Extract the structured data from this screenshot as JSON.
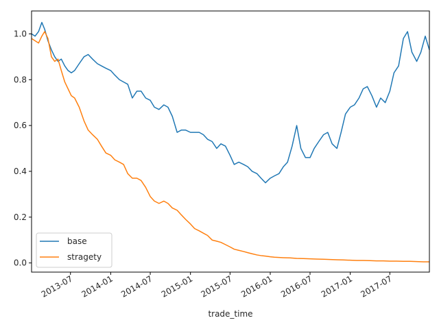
{
  "chart_data": {
    "type": "line",
    "title": "",
    "xlabel": "trade_time",
    "ylabel": "",
    "x_range": [
      "2013-01-04",
      "2017-12-29"
    ],
    "ylim": [
      -0.04,
      1.1
    ],
    "x_ticks": [
      "2013-07",
      "2014-01",
      "2014-07",
      "2015-01",
      "2015-07",
      "2016-01",
      "2016-07",
      "2017-01",
      "2017-07"
    ],
    "y_ticks": [
      0.0,
      0.2,
      0.4,
      0.6,
      0.8,
      1.0
    ],
    "y_tick_labels": [
      "0.0",
      "0.2",
      "0.4",
      "0.6",
      "0.8",
      "1.0"
    ],
    "grid": false,
    "legend": {
      "position": "lower-left",
      "entries": [
        "base",
        "stragety"
      ]
    },
    "series": [
      {
        "name": "base",
        "color": "#1f77b4",
        "x": [
          "2013-01-04",
          "2013-01-20",
          "2013-02-05",
          "2013-02-20",
          "2013-03-05",
          "2013-03-20",
          "2013-04-05",
          "2013-04-20",
          "2013-05-05",
          "2013-05-20",
          "2013-06-05",
          "2013-06-20",
          "2013-07-05",
          "2013-07-20",
          "2013-08-10",
          "2013-09-01",
          "2013-09-20",
          "2013-10-10",
          "2013-11-01",
          "2013-11-20",
          "2013-12-10",
          "2014-01-01",
          "2014-01-20",
          "2014-02-10",
          "2014-03-01",
          "2014-03-20",
          "2014-04-10",
          "2014-05-01",
          "2014-05-20",
          "2014-06-10",
          "2014-07-01",
          "2014-07-20",
          "2014-08-10",
          "2014-09-01",
          "2014-09-20",
          "2014-10-10",
          "2014-11-01",
          "2014-11-20",
          "2014-12-10",
          "2015-01-01",
          "2015-01-20",
          "2015-02-10",
          "2015-03-01",
          "2015-03-20",
          "2015-04-10",
          "2015-05-01",
          "2015-05-20",
          "2015-06-10",
          "2015-07-01",
          "2015-07-20",
          "2015-08-10",
          "2015-09-01",
          "2015-09-20",
          "2015-10-10",
          "2015-11-01",
          "2015-11-20",
          "2015-12-10",
          "2016-01-01",
          "2016-01-20",
          "2016-02-10",
          "2016-03-01",
          "2016-03-20",
          "2016-04-10",
          "2016-05-01",
          "2016-05-20",
          "2016-06-10",
          "2016-07-01",
          "2016-07-20",
          "2016-08-10",
          "2016-09-01",
          "2016-09-20",
          "2016-10-10",
          "2016-11-01",
          "2016-11-20",
          "2016-12-10",
          "2017-01-01",
          "2017-01-20",
          "2017-02-10",
          "2017-03-01",
          "2017-03-20",
          "2017-04-10",
          "2017-05-01",
          "2017-05-20",
          "2017-06-10",
          "2017-07-01",
          "2017-07-20",
          "2017-08-10",
          "2017-09-01",
          "2017-09-20",
          "2017-10-10",
          "2017-11-01",
          "2017-11-20",
          "2017-12-10",
          "2017-12-29"
        ],
        "values": [
          1.0,
          0.99,
          1.01,
          1.05,
          1.02,
          0.97,
          0.93,
          0.9,
          0.88,
          0.89,
          0.86,
          0.84,
          0.83,
          0.84,
          0.87,
          0.9,
          0.91,
          0.89,
          0.87,
          0.86,
          0.85,
          0.84,
          0.82,
          0.8,
          0.79,
          0.78,
          0.72,
          0.75,
          0.75,
          0.72,
          0.71,
          0.68,
          0.67,
          0.69,
          0.68,
          0.64,
          0.57,
          0.58,
          0.58,
          0.57,
          0.57,
          0.57,
          0.56,
          0.54,
          0.53,
          0.5,
          0.52,
          0.51,
          0.47,
          0.43,
          0.44,
          0.43,
          0.42,
          0.4,
          0.39,
          0.37,
          0.35,
          0.37,
          0.38,
          0.39,
          0.42,
          0.44,
          0.51,
          0.6,
          0.5,
          0.46,
          0.46,
          0.5,
          0.53,
          0.56,
          0.57,
          0.52,
          0.5,
          0.57,
          0.65,
          0.68,
          0.69,
          0.72,
          0.76,
          0.77,
          0.73,
          0.68,
          0.72,
          0.7,
          0.75,
          0.83,
          0.86,
          0.98,
          1.01,
          0.92,
          0.88,
          0.92,
          0.99,
          0.93
        ]
      },
      {
        "name": "stragety",
        "color": "#ff7f0e",
        "x": [
          "2013-01-04",
          "2013-01-20",
          "2013-02-05",
          "2013-02-20",
          "2013-03-05",
          "2013-03-20",
          "2013-04-05",
          "2013-04-20",
          "2013-05-05",
          "2013-05-20",
          "2013-06-05",
          "2013-06-20",
          "2013-07-05",
          "2013-07-20",
          "2013-08-10",
          "2013-09-01",
          "2013-09-20",
          "2013-10-10",
          "2013-11-01",
          "2013-11-20",
          "2013-12-10",
          "2014-01-01",
          "2014-01-20",
          "2014-02-10",
          "2014-03-01",
          "2014-03-20",
          "2014-04-10",
          "2014-05-01",
          "2014-05-20",
          "2014-06-10",
          "2014-07-01",
          "2014-07-20",
          "2014-08-10",
          "2014-09-01",
          "2014-09-20",
          "2014-10-10",
          "2014-11-01",
          "2014-11-20",
          "2014-12-10",
          "2015-01-01",
          "2015-01-20",
          "2015-02-10",
          "2015-03-01",
          "2015-03-20",
          "2015-04-10",
          "2015-05-01",
          "2015-05-20",
          "2015-06-10",
          "2015-07-01",
          "2015-07-20",
          "2015-08-10",
          "2015-09-01",
          "2015-09-20",
          "2015-10-10",
          "2015-11-01",
          "2015-11-20",
          "2015-12-10",
          "2016-01-01",
          "2016-01-20",
          "2016-02-10",
          "2016-03-01",
          "2016-04-01",
          "2016-05-01",
          "2016-06-01",
          "2016-07-01",
          "2016-08-01",
          "2016-09-01",
          "2016-10-01",
          "2016-11-01",
          "2016-12-01",
          "2017-01-01",
          "2017-02-01",
          "2017-03-01",
          "2017-04-01",
          "2017-05-01",
          "2017-06-01",
          "2017-07-01",
          "2017-08-01",
          "2017-09-01",
          "2017-10-01",
          "2017-11-01",
          "2017-12-01",
          "2017-12-29"
        ],
        "values": [
          0.98,
          0.97,
          0.96,
          0.99,
          1.01,
          0.98,
          0.9,
          0.88,
          0.89,
          0.84,
          0.79,
          0.76,
          0.73,
          0.72,
          0.68,
          0.62,
          0.58,
          0.56,
          0.54,
          0.51,
          0.48,
          0.47,
          0.45,
          0.44,
          0.43,
          0.39,
          0.37,
          0.37,
          0.36,
          0.33,
          0.29,
          0.27,
          0.26,
          0.27,
          0.26,
          0.24,
          0.23,
          0.21,
          0.19,
          0.17,
          0.15,
          0.14,
          0.13,
          0.12,
          0.1,
          0.095,
          0.09,
          0.08,
          0.07,
          0.06,
          0.055,
          0.05,
          0.045,
          0.04,
          0.035,
          0.032,
          0.03,
          0.027,
          0.025,
          0.024,
          0.023,
          0.022,
          0.02,
          0.019,
          0.018,
          0.017,
          0.016,
          0.015,
          0.014,
          0.013,
          0.012,
          0.011,
          0.011,
          0.01,
          0.009,
          0.009,
          0.008,
          0.008,
          0.007,
          0.007,
          0.006,
          0.005,
          0.005
        ]
      }
    ]
  }
}
